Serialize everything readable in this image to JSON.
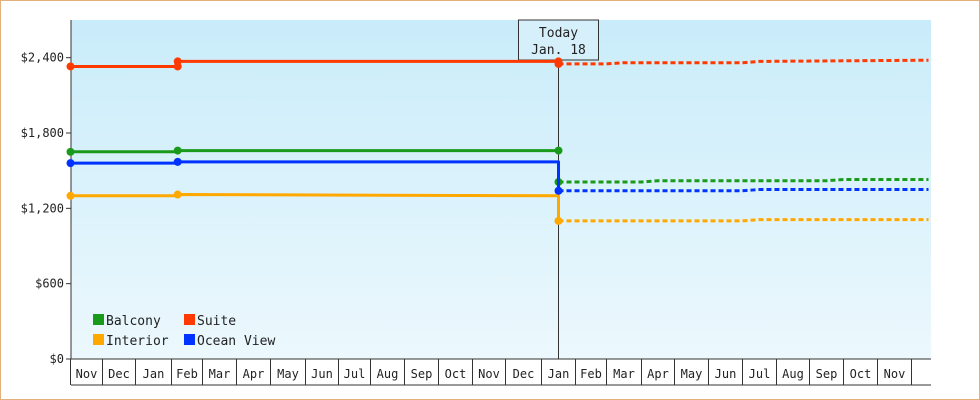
{
  "chart_data": {
    "type": "line",
    "title": "",
    "xlabel": "",
    "ylabel": "",
    "ylim": [
      0,
      2700
    ],
    "y_ticks": [
      "$0",
      "$600",
      "$1,200",
      "$1,800",
      "$2,400"
    ],
    "y_tick_values": [
      0,
      600,
      1200,
      1800,
      2400
    ],
    "x_ticks": [
      "Nov",
      "Dec",
      "Jan",
      "Feb",
      "Mar",
      "Apr",
      "May",
      "Jun",
      "Jul",
      "Aug",
      "Sep",
      "Oct",
      "Nov",
      "Dec",
      "Jan",
      "Feb",
      "Mar",
      "Apr",
      "May",
      "Jun",
      "Jul",
      "Aug",
      "Sep",
      "Oct",
      "Nov"
    ],
    "grid": false,
    "legend_position": "bottom-left",
    "today_marker": {
      "line1": "Today",
      "line2": "Jan. 18",
      "x_index": 14.5
    },
    "series": [
      {
        "name": "Balcony",
        "color": "#1a9a1a",
        "history": [
          [
            0,
            1650
          ],
          [
            3.2,
            1650
          ],
          [
            3.2,
            1660
          ],
          [
            14.5,
            1660
          ]
        ],
        "history_points": [
          [
            0,
            1650
          ],
          [
            3.2,
            1660
          ],
          [
            14.5,
            1660
          ],
          [
            14.5,
            1410
          ]
        ],
        "forecast": [
          [
            14.5,
            1410
          ],
          [
            17.0,
            1410
          ],
          [
            17.5,
            1420
          ],
          [
            22.5,
            1420
          ],
          [
            23.0,
            1430
          ],
          [
            25.5,
            1430
          ]
        ]
      },
      {
        "name": "Suite",
        "color": "#ff3a00",
        "history": [
          [
            0,
            2330
          ],
          [
            3.2,
            2330
          ],
          [
            3.2,
            2370
          ],
          [
            14.5,
            2370
          ]
        ],
        "history_points": [
          [
            0,
            2330
          ],
          [
            3.2,
            2330
          ],
          [
            3.2,
            2370
          ],
          [
            14.5,
            2370
          ],
          [
            14.5,
            2350
          ]
        ],
        "forecast": [
          [
            14.5,
            2350
          ],
          [
            16.0,
            2350
          ],
          [
            16.5,
            2360
          ],
          [
            20.0,
            2360
          ],
          [
            20.5,
            2370
          ],
          [
            25.5,
            2380
          ]
        ]
      },
      {
        "name": "Interior",
        "color": "#ffa800",
        "history": [
          [
            0,
            1300
          ],
          [
            3.2,
            1300
          ],
          [
            3.2,
            1310
          ],
          [
            14.5,
            1300
          ],
          [
            14.5,
            1250
          ],
          [
            14.5,
            1100
          ]
        ],
        "history_points": [
          [
            0,
            1300
          ],
          [
            3.2,
            1310
          ],
          [
            14.5,
            1100
          ]
        ],
        "forecast": [
          [
            14.5,
            1100
          ],
          [
            20.0,
            1100
          ],
          [
            20.5,
            1110
          ],
          [
            25.5,
            1110
          ]
        ]
      },
      {
        "name": "Ocean View",
        "color": "#0033ff",
        "history": [
          [
            0,
            1560
          ],
          [
            3.2,
            1560
          ],
          [
            3.2,
            1570
          ],
          [
            14.5,
            1570
          ],
          [
            14.5,
            1440
          ],
          [
            14.5,
            1340
          ]
        ],
        "history_points": [
          [
            0,
            1560
          ],
          [
            3.2,
            1570
          ],
          [
            14.5,
            1340
          ]
        ],
        "forecast": [
          [
            14.5,
            1340
          ],
          [
            20.0,
            1340
          ],
          [
            20.5,
            1350
          ],
          [
            25.5,
            1350
          ]
        ]
      }
    ]
  },
  "legend": [
    {
      "name": "Balcony",
      "color": "#1a9a1a"
    },
    {
      "name": "Suite",
      "color": "#ff3a00"
    },
    {
      "name": "Interior",
      "color": "#ffa800"
    },
    {
      "name": "Ocean View",
      "color": "#0033ff"
    }
  ]
}
